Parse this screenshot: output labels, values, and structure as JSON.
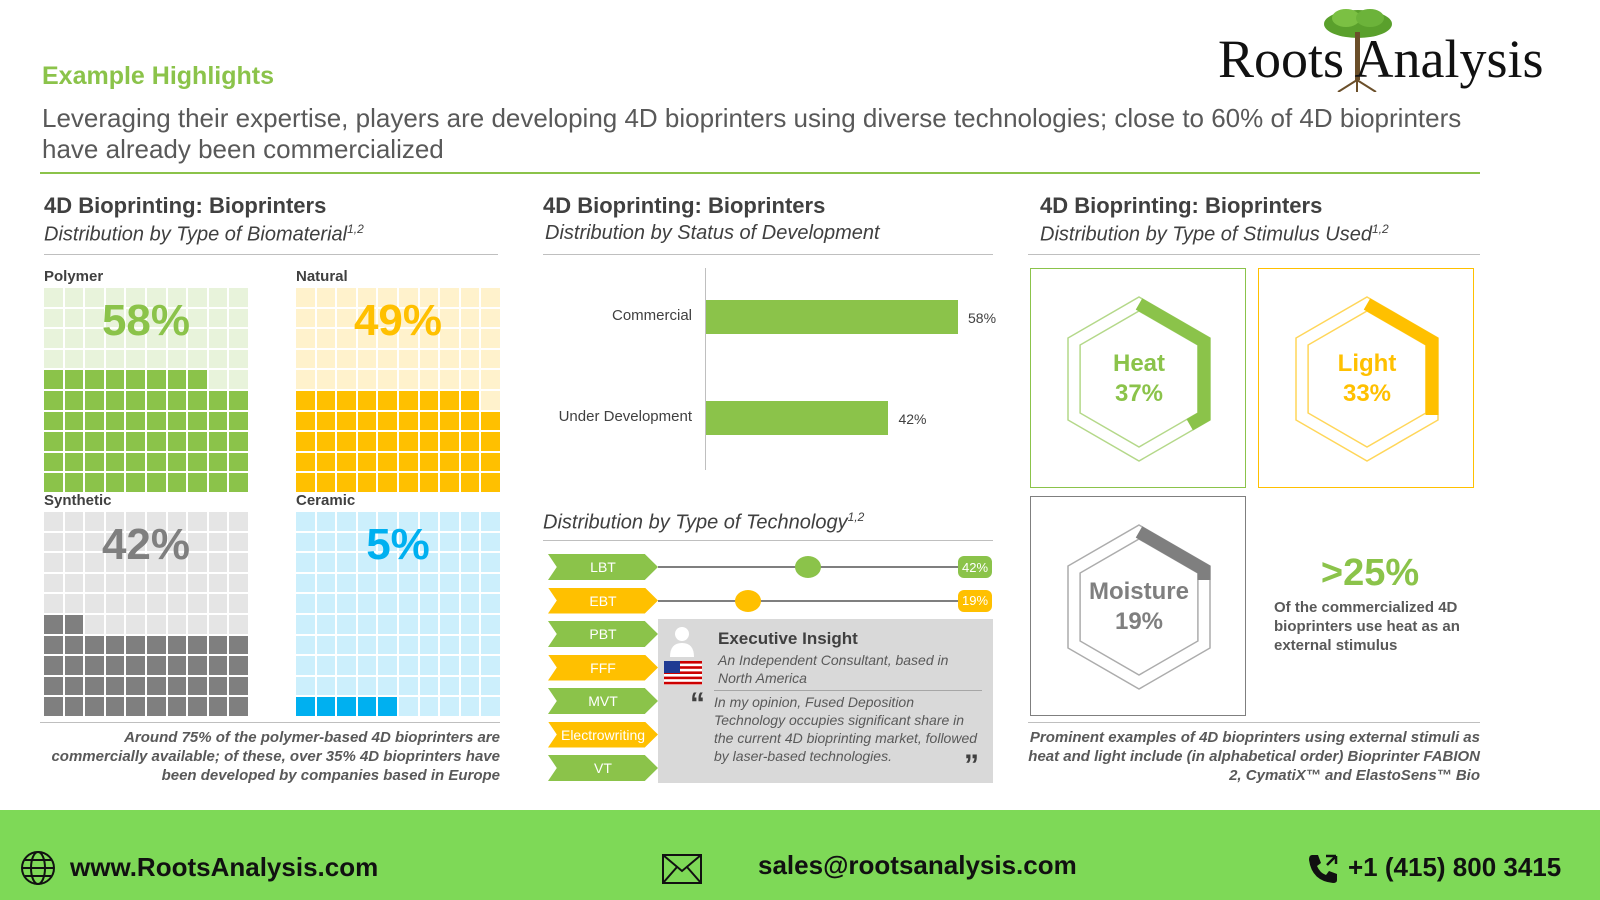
{
  "header": {
    "section_label": "Example Highlights",
    "headline": "Leveraging their expertise, players are developing 4D bioprinters using diverse technologies; close to 60% of 4D bioprinters have already been commercialized",
    "logo_text": "Roots Analysis"
  },
  "colors": {
    "green": "#8bc34a",
    "yellow": "#ffc000",
    "gray": "#7f7f7f",
    "blue": "#00b0f0"
  },
  "panel_left": {
    "title": "4D Bioprinting:  Bioprinters",
    "subtitle": "Distribution by Type of Biomaterial",
    "subtitle_sup": "1,2",
    "note": "Around 75% of the polymer-based 4D bioprinters are commercially available; of these, over 35% 4D bioprinters have been developed by companies based in Europe"
  },
  "panel_mid": {
    "title": "4D Bioprinting:  Bioprinters",
    "subtitle": "Distribution by Status of Development",
    "tech_subtitle": "Distribution by Type of Technology",
    "tech_subtitle_sup": "1,2",
    "insight": {
      "title": "Executive Insight",
      "source_line1": "An Independent Consultant, based in",
      "source_line2": "North America",
      "quote": "In my opinion, Fused Deposition Technology occupies significant share in the current 4D bioprinting market, followed by laser-based technologies.",
      "open_quote": "“",
      "close_quote": "”"
    }
  },
  "panel_right": {
    "title": "4D Bioprinting:  Bioprinters",
    "subtitle": "Distribution by Type of Stimulus Used",
    "subtitle_sup": "1,2",
    "callout_value": ">25%",
    "callout_text": "Of the commercialized 4D bioprinters use heat as an external stimulus",
    "note": "Prominent examples of 4D bioprinters using external stimuli as heat and light include (in alphabetical order) Bioprinter FABION 2, CymatiX™ and ElastoSens™ Bio"
  },
  "footer": {
    "website": "www.RootsAnalysis.com",
    "email": "sales@rootsanalysis.com",
    "phone": "+1 (415) 800 3415"
  },
  "chart_data": [
    {
      "type": "waffle",
      "title": "Distribution by Type of Biomaterial",
      "categories": [
        "Polymer",
        "Natural",
        "Synthetic",
        "Ceramic"
      ],
      "values": [
        58,
        49,
        42,
        5
      ],
      "labels": [
        "58%",
        "49%",
        "42%",
        "5%"
      ],
      "colors": [
        "#8bc34a",
        "#ffc000",
        "#7f7f7f",
        "#00b0f0"
      ]
    },
    {
      "type": "bar",
      "title": "Distribution by Status of Development",
      "categories": [
        "Commercial",
        "Under Development"
      ],
      "values": [
        58,
        42
      ],
      "labels": [
        "58%",
        "42%"
      ]
    },
    {
      "type": "dot",
      "title": "Distribution by Type of Technology",
      "categories": [
        "LBT",
        "EBT",
        "PBT",
        "FFF",
        "MVT",
        "Electrowriting",
        "VT"
      ],
      "values": [
        42,
        19
      ],
      "labels": [
        "42%",
        "19%"
      ],
      "pill_colors": [
        "#8bc34a",
        "#ffc000",
        "#8bc34a",
        "#ffc000",
        "#8bc34a",
        "#ffc000",
        "#8bc34a"
      ]
    },
    {
      "type": "hexagon-gauge",
      "title": "Distribution by Type of Stimulus Used",
      "categories": [
        "Heat",
        "Light",
        "Moisture"
      ],
      "values": [
        37,
        33,
        19
      ],
      "labels": [
        "37%",
        "33%",
        "19%"
      ],
      "colors": [
        "#8bc34a",
        "#ffc000",
        "#7f7f7f"
      ]
    }
  ]
}
